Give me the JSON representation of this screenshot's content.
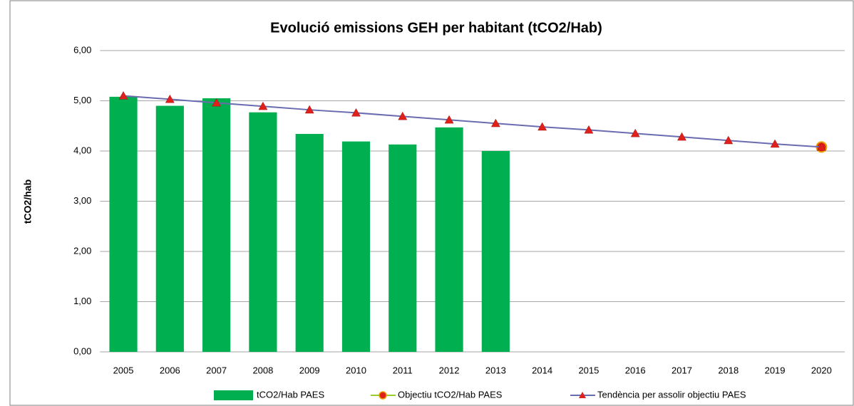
{
  "chart_data": {
    "type": "bar",
    "title": "Evolució emissions GEH per habitant (tCO2/Hab)",
    "y_label": "tCO2/hab",
    "categories": [
      "2005",
      "2006",
      "2007",
      "2008",
      "2009",
      "2010",
      "2011",
      "2012",
      "2013",
      "2014",
      "2015",
      "2016",
      "2017",
      "2018",
      "2019",
      "2020"
    ],
    "series": [
      {
        "name": "tCO2/Hab PAES",
        "type": "bar",
        "color": "#00b050",
        "values": [
          5.08,
          4.9,
          5.05,
          4.77,
          4.34,
          4.19,
          4.13,
          4.47,
          4.0,
          null,
          null,
          null,
          null,
          null,
          null,
          null
        ]
      },
      {
        "name": "Objectiu tCO2/Hab PAES",
        "type": "line",
        "color": "#9acd32",
        "marker": "circle",
        "marker_color": "#e0201b",
        "marker_edge": "#e8a000",
        "values": [
          null,
          null,
          null,
          null,
          null,
          null,
          null,
          null,
          null,
          null,
          null,
          null,
          null,
          null,
          null,
          4.08
        ]
      },
      {
        "name": "Tendència per assolir objectiu PAES",
        "type": "line",
        "color": "#6b6bb0",
        "marker": "triangle",
        "marker_color": "#e0201b",
        "values": [
          5.1,
          5.03,
          4.96,
          4.89,
          4.82,
          4.76,
          4.69,
          4.62,
          4.55,
          4.48,
          4.42,
          4.35,
          4.28,
          4.21,
          4.14,
          4.08
        ]
      }
    ],
    "ylim": [
      0,
      6
    ],
    "yticks": [
      {
        "value": 0,
        "label": "0,00"
      },
      {
        "value": 1,
        "label": "1,00"
      },
      {
        "value": 2,
        "label": "2,00"
      },
      {
        "value": 3,
        "label": "3,00"
      },
      {
        "value": 4,
        "label": "4,00"
      },
      {
        "value": 5,
        "label": "5,00"
      },
      {
        "value": 6,
        "label": "6,00"
      }
    ],
    "grid": true,
    "legend": "bottom"
  }
}
